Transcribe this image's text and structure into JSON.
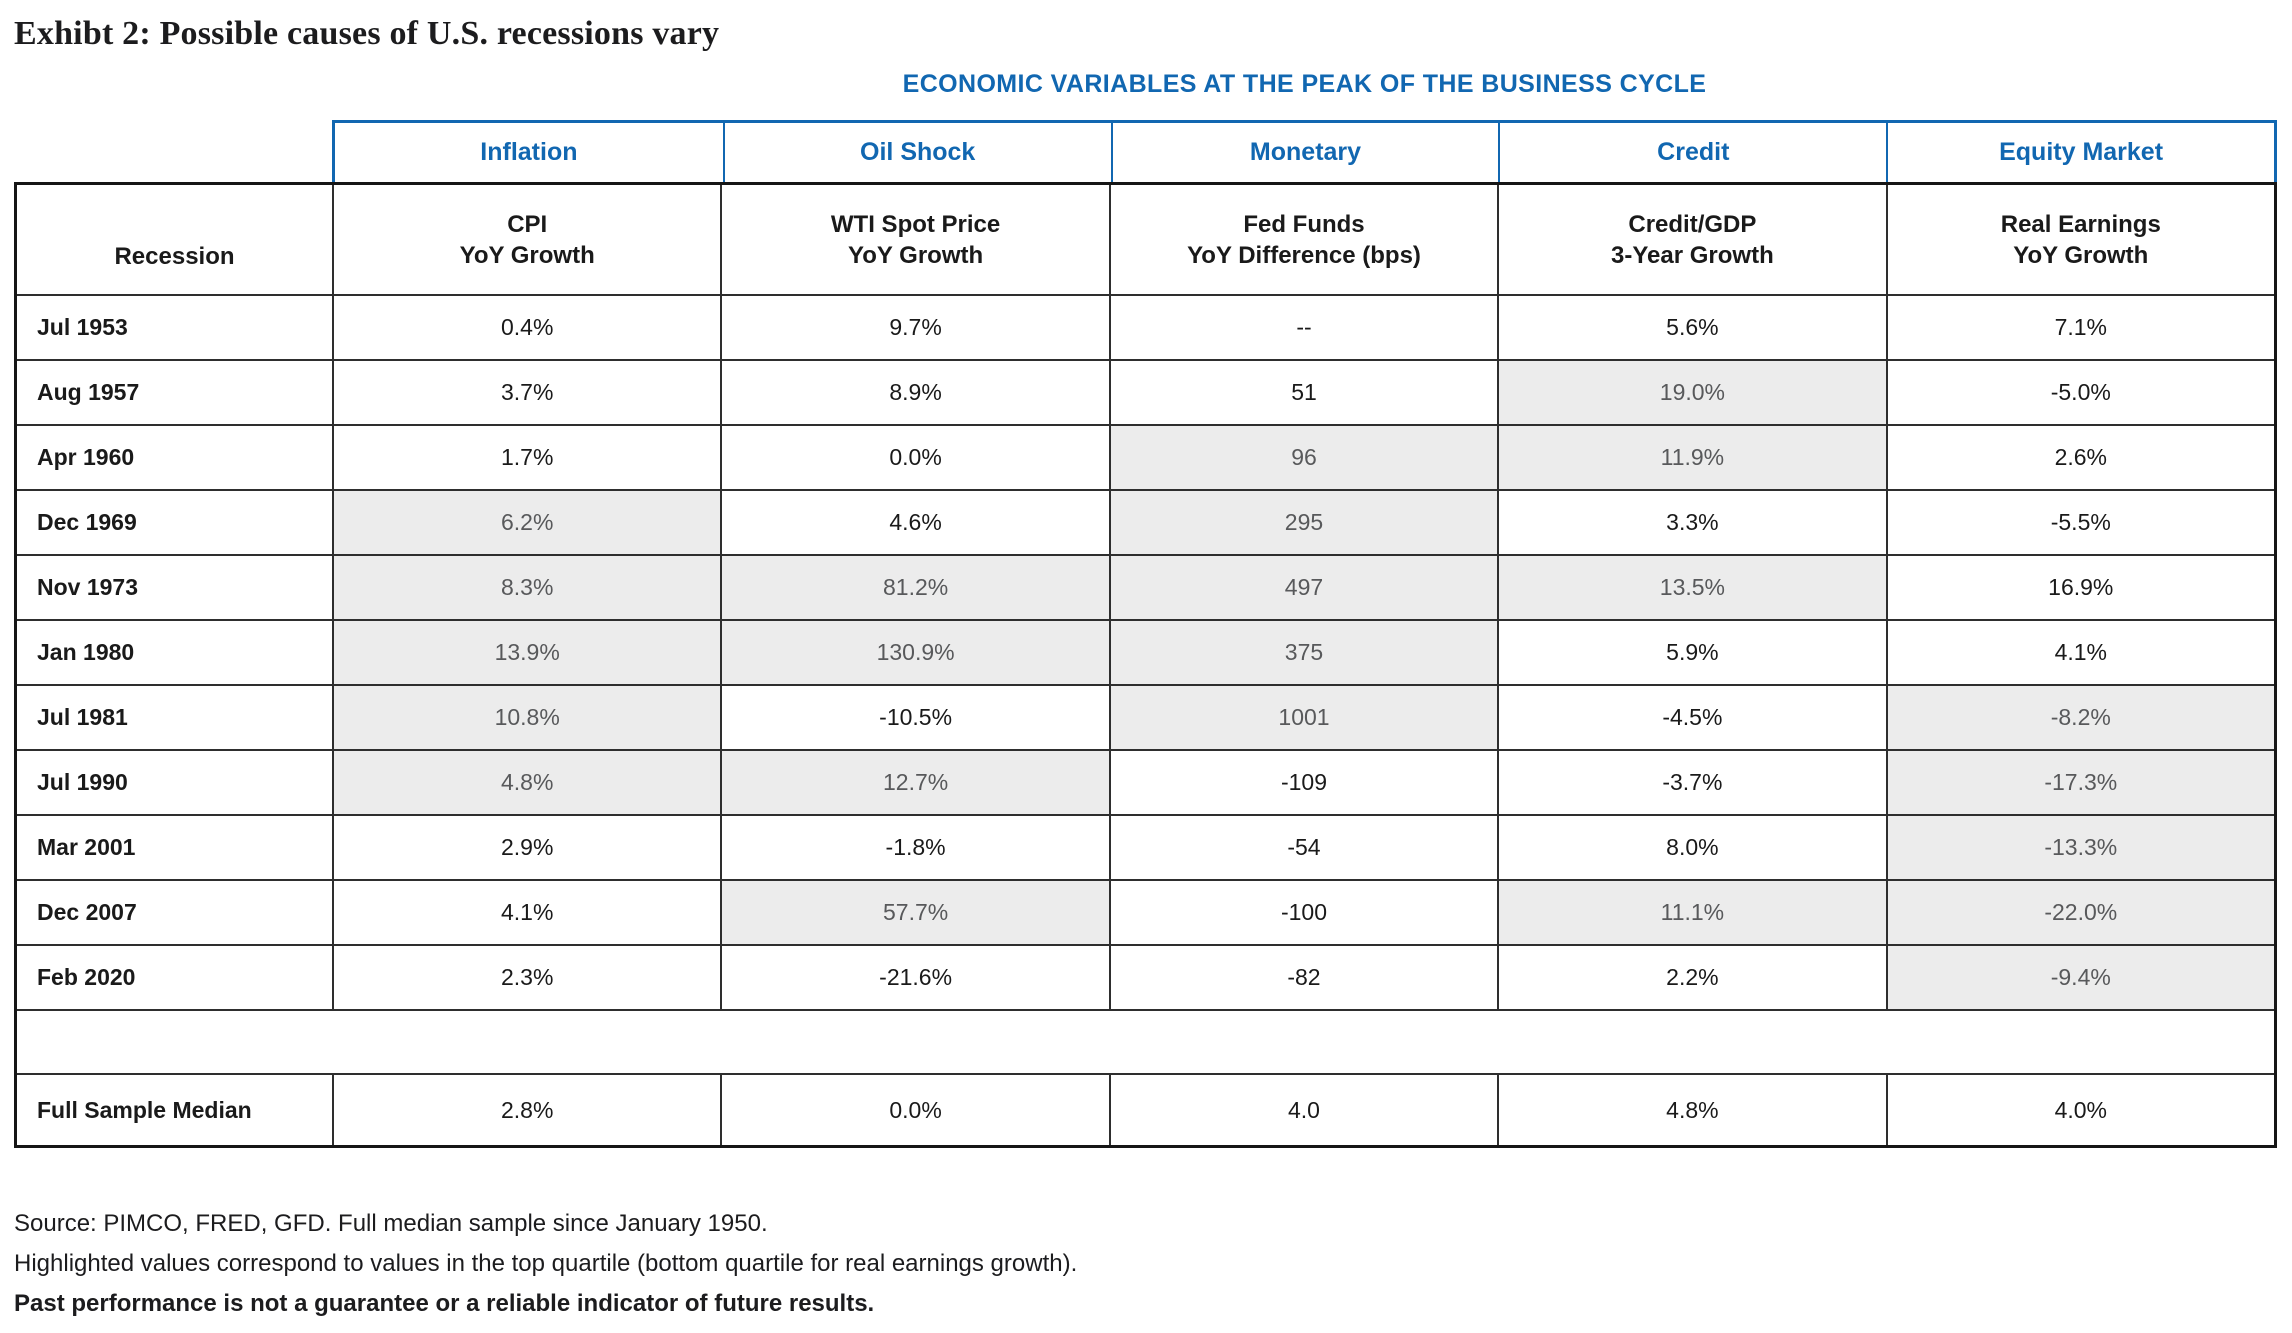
{
  "exhibit_title": "Exhibt 2: Possible causes of U.S. recessions vary",
  "colors": {
    "accent-blue": "#1167B1",
    "ink": "#1A1A1A",
    "highlight-bg": "#ECECEC",
    "highlight-text": "#58595B"
  },
  "chart_data": {
    "type": "table",
    "title": "ECONOMIC VARIABLES AT THE PEAK OF THE BUSINESS CYCLE",
    "category_groups": [
      "Inflation",
      "Oil Shock",
      "Monetary",
      "Credit",
      "Equity Market"
    ],
    "row_header": "Recession",
    "column_headers": [
      [
        "CPI",
        "YoY Growth"
      ],
      [
        "WTI Spot Price",
        "YoY Growth"
      ],
      [
        "Fed Funds",
        "YoY Difference (bps)"
      ],
      [
        "Credit/GDP",
        "3-Year Growth"
      ],
      [
        "Real Earnings",
        "YoY Growth"
      ]
    ],
    "rows": [
      {
        "recession": "Jul 1953",
        "values": [
          "0.4%",
          "9.7%",
          "--",
          "5.6%",
          "7.1%"
        ],
        "highlight": [
          false,
          false,
          false,
          false,
          false
        ]
      },
      {
        "recession": "Aug 1957",
        "values": [
          "3.7%",
          "8.9%",
          "51",
          "19.0%",
          "-5.0%"
        ],
        "highlight": [
          false,
          false,
          false,
          true,
          false
        ]
      },
      {
        "recession": "Apr 1960",
        "values": [
          "1.7%",
          "0.0%",
          "96",
          "11.9%",
          "2.6%"
        ],
        "highlight": [
          false,
          false,
          true,
          true,
          false
        ]
      },
      {
        "recession": "Dec 1969",
        "values": [
          "6.2%",
          "4.6%",
          "295",
          "3.3%",
          "-5.5%"
        ],
        "highlight": [
          true,
          false,
          true,
          false,
          false
        ]
      },
      {
        "recession": "Nov 1973",
        "values": [
          "8.3%",
          "81.2%",
          "497",
          "13.5%",
          "16.9%"
        ],
        "highlight": [
          true,
          true,
          true,
          true,
          false
        ]
      },
      {
        "recession": "Jan 1980",
        "values": [
          "13.9%",
          "130.9%",
          "375",
          "5.9%",
          "4.1%"
        ],
        "highlight": [
          true,
          true,
          true,
          false,
          false
        ]
      },
      {
        "recession": "Jul 1981",
        "values": [
          "10.8%",
          "-10.5%",
          "1001",
          "-4.5%",
          "-8.2%"
        ],
        "highlight": [
          true,
          false,
          true,
          false,
          true
        ]
      },
      {
        "recession": "Jul 1990",
        "values": [
          "4.8%",
          "12.7%",
          "-109",
          "-3.7%",
          "-17.3%"
        ],
        "highlight": [
          true,
          true,
          false,
          false,
          true
        ]
      },
      {
        "recession": "Mar 2001",
        "values": [
          "2.9%",
          "-1.8%",
          "-54",
          "8.0%",
          "-13.3%"
        ],
        "highlight": [
          false,
          false,
          false,
          false,
          true
        ]
      },
      {
        "recession": "Dec 2007",
        "values": [
          "4.1%",
          "57.7%",
          "-100",
          "11.1%",
          "-22.0%"
        ],
        "highlight": [
          false,
          true,
          false,
          true,
          true
        ]
      },
      {
        "recession": "Feb 2020",
        "values": [
          "2.3%",
          "-21.6%",
          "-82",
          "2.2%",
          "-9.4%"
        ],
        "highlight": [
          false,
          false,
          false,
          false,
          true
        ]
      }
    ],
    "median_row": {
      "label": "Full Sample Median",
      "values": [
        "2.8%",
        "0.0%",
        "4.0",
        "4.8%",
        "4.0%"
      ]
    }
  },
  "footnotes": [
    "Source: PIMCO, FRED, GFD. Full median sample since January 1950.",
    "Highlighted values correspond to values in the top quartile (bottom quartile for real earnings growth).",
    "Past performance is not a guarantee or a reliable indicator of future results."
  ]
}
